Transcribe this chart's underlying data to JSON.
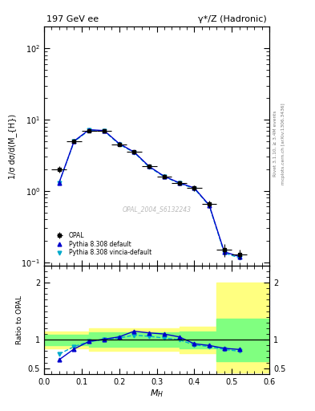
{
  "title_left": "197 GeV ee",
  "title_right": "γ*/Z (Hadronic)",
  "xlabel": "M_{H}",
  "ylabel_main": "1/σ dσ/d(M_{H})",
  "ylabel_ratio": "Ratio to OPAL",
  "right_label_top": "Rivet 3.1.10, ≥ 3.4M events",
  "right_label_bot": "mcplots.cern.ch [arXiv:1306.3436]",
  "watermark": "OPAL_2004_S6132243",
  "opal_x": [
    0.04,
    0.08,
    0.12,
    0.16,
    0.2,
    0.24,
    0.28,
    0.32,
    0.36,
    0.4,
    0.44,
    0.48,
    0.52
  ],
  "opal_y": [
    2.0,
    5.0,
    7.0,
    7.0,
    4.5,
    3.5,
    2.2,
    1.6,
    1.3,
    1.1,
    0.65,
    0.15,
    0.13
  ],
  "opal_xerr": [
    0.02,
    0.02,
    0.02,
    0.02,
    0.02,
    0.02,
    0.02,
    0.02,
    0.02,
    0.02,
    0.02,
    0.02,
    0.02
  ],
  "opal_yerr": [
    0.2,
    0.3,
    0.4,
    0.4,
    0.3,
    0.25,
    0.15,
    0.1,
    0.1,
    0.1,
    0.07,
    0.03,
    0.02
  ],
  "pythia_def_x": [
    0.04,
    0.08,
    0.12,
    0.16,
    0.2,
    0.24,
    0.28,
    0.32,
    0.36,
    0.4,
    0.44,
    0.48,
    0.52
  ],
  "pythia_def_y": [
    1.3,
    5.0,
    7.2,
    7.0,
    4.6,
    3.5,
    2.2,
    1.6,
    1.3,
    1.1,
    0.63,
    0.14,
    0.12
  ],
  "pythia_vin_x": [
    0.04,
    0.08,
    0.12,
    0.16,
    0.2,
    0.24,
    0.28,
    0.32,
    0.36,
    0.4,
    0.44,
    0.48,
    0.52
  ],
  "pythia_vin_y": [
    1.3,
    4.9,
    7.1,
    6.9,
    4.5,
    3.45,
    2.15,
    1.58,
    1.28,
    1.08,
    0.62,
    0.135,
    0.115
  ],
  "ratio_def_x": [
    0.04,
    0.08,
    0.12,
    0.16,
    0.2,
    0.24,
    0.28,
    0.32,
    0.36,
    0.4,
    0.44,
    0.48,
    0.52
  ],
  "ratio_def_y": [
    0.65,
    0.84,
    0.97,
    1.01,
    1.05,
    1.15,
    1.12,
    1.1,
    1.05,
    0.93,
    0.9,
    0.85,
    0.83
  ],
  "ratio_vin_x": [
    0.04,
    0.08,
    0.12,
    0.16,
    0.2,
    0.24,
    0.28,
    0.32,
    0.36,
    0.4,
    0.44,
    0.48,
    0.52
  ],
  "ratio_vin_y": [
    0.75,
    0.88,
    0.97,
    1.0,
    1.03,
    1.08,
    1.06,
    1.03,
    1.0,
    0.91,
    0.88,
    0.83,
    0.8
  ],
  "ylim_main": [
    0.09,
    200
  ],
  "ylim_ratio": [
    0.4,
    2.3
  ],
  "xlim": [
    0.0,
    0.6
  ],
  "color_opal": "#000000",
  "color_pythia_def": "#0000cc",
  "color_pythia_vin": "#00aacc",
  "color_band_yellow": "#ffff80",
  "color_band_green": "#80ff80",
  "legend_labels": [
    "OPAL",
    "Pythia 8.308 default",
    "Pythia 8.308 vincia-default"
  ]
}
